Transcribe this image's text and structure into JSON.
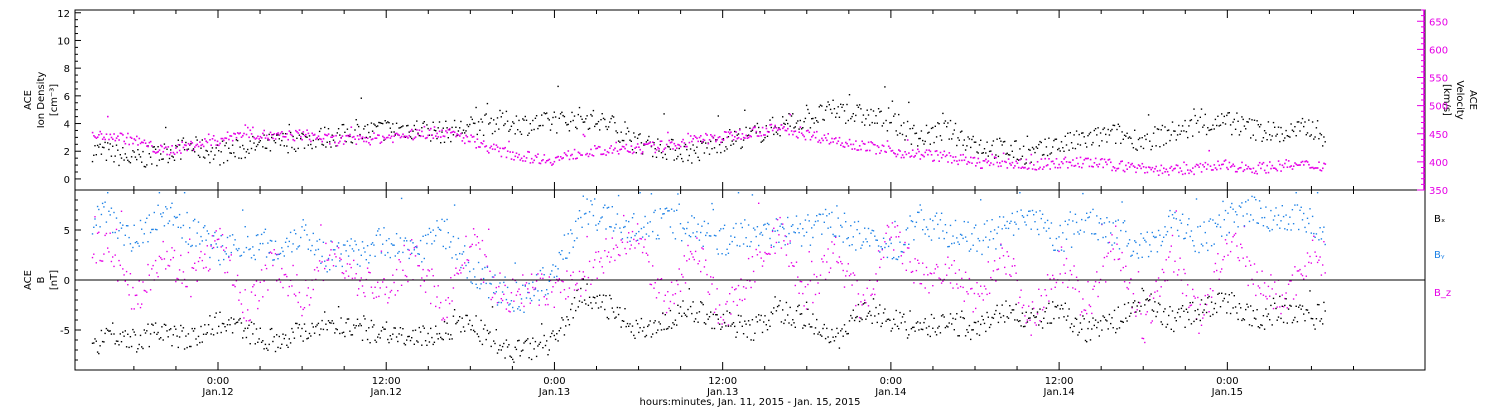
{
  "chart_data": [
    {
      "type": "scatter",
      "panel": "plasma",
      "ylabel_left": [
        "ACE",
        "Ion Density",
        "[cm⁻³]"
      ],
      "ylabel_right": [
        "ACE",
        "Velocity",
        "[km/s]"
      ],
      "ylim_left": [
        -0.8,
        12.2
      ],
      "ylim_right": [
        350,
        670
      ],
      "yticks_left": [
        "0",
        "2",
        "4",
        "6",
        "8",
        "10",
        "12"
      ],
      "yticks_right": [
        "350",
        "400",
        "450",
        "500",
        "550",
        "600",
        "650"
      ],
      "colors": {
        "density": "#000000",
        "velocity": "#e600e6"
      },
      "series": [
        {
          "name": "Ion Density",
          "axis": "left",
          "color": "#000000",
          "x_hours": [
            -9,
            -8,
            -6,
            -4,
            -2,
            0,
            2,
            4,
            6,
            8,
            10,
            12,
            14,
            16,
            18,
            20,
            22,
            24,
            26,
            28,
            30,
            32,
            34,
            36,
            38,
            40,
            42,
            44,
            46,
            48,
            50,
            52,
            54,
            56,
            58,
            60,
            62,
            64,
            66,
            68,
            70,
            72,
            74,
            76,
            78,
            79
          ],
          "values": [
            2.1,
            2.0,
            1.4,
            1.9,
            2.4,
            1.8,
            2.3,
            2.6,
            2.9,
            3.1,
            3.4,
            3.6,
            3.7,
            3.4,
            3.8,
            4.2,
            4.0,
            4.1,
            4.5,
            3.9,
            2.6,
            2.2,
            1.9,
            2.8,
            3.2,
            3.9,
            4.4,
            5.0,
            4.6,
            4.2,
            3.0,
            3.6,
            2.5,
            2.2,
            1.8,
            2.5,
            2.9,
            3.3,
            2.8,
            3.4,
            3.9,
            4.1,
            3.6,
            3.3,
            3.8,
            3.0
          ]
        },
        {
          "name": "Velocity",
          "axis": "right",
          "color": "#e600e6",
          "x_hours": [
            -9,
            -8,
            -6,
            -4,
            -2,
            0,
            2,
            4,
            6,
            8,
            10,
            12,
            14,
            16,
            18,
            20,
            22,
            24,
            26,
            28,
            30,
            32,
            34,
            36,
            38,
            40,
            42,
            44,
            46,
            48,
            50,
            52,
            54,
            56,
            58,
            60,
            62,
            64,
            66,
            68,
            70,
            72,
            74,
            76,
            78,
            79
          ],
          "values": [
            445,
            450,
            440,
            420,
            430,
            440,
            455,
            445,
            450,
            440,
            440,
            445,
            450,
            455,
            440,
            420,
            410,
            405,
            420,
            420,
            425,
            430,
            440,
            445,
            455,
            460,
            450,
            440,
            430,
            420,
            415,
            410,
            400,
            400,
            395,
            400,
            400,
            395,
            390,
            385,
            390,
            395,
            390,
            395,
            395,
            395
          ]
        }
      ]
    },
    {
      "type": "scatter",
      "panel": "magnetic field",
      "ylabel": [
        "ACE",
        "B",
        "[nT]"
      ],
      "ylim": [
        -9,
        9
      ],
      "yticks": [
        "-5",
        "0",
        "5"
      ],
      "legend": [
        "Bₓ",
        "Bᵧ",
        "B_z"
      ],
      "legend_placement": "right",
      "zero_line": true,
      "colors": {
        "bx": "#000000",
        "by": "#1e82e6",
        "bz": "#e600e6"
      },
      "series": [
        {
          "name": "Bₓ",
          "color": "#000000",
          "x_hours": [
            -9,
            -8,
            -6,
            -4,
            -2,
            0,
            2,
            4,
            6,
            8,
            10,
            12,
            14,
            16,
            18,
            20,
            22,
            24,
            26,
            28,
            30,
            32,
            34,
            36,
            38,
            40,
            42,
            44,
            46,
            48,
            50,
            52,
            54,
            56,
            58,
            60,
            62,
            64,
            66,
            68,
            70,
            72,
            74,
            76,
            78,
            79
          ],
          "values": [
            -7,
            -5,
            -6,
            -5,
            -6,
            -4,
            -5,
            -6,
            -5,
            -4,
            -5,
            -5,
            -6,
            -5,
            -4,
            -7,
            -7,
            -6,
            -1,
            -3,
            -5,
            -4,
            -3,
            -4,
            -5,
            -3,
            -4,
            -6,
            -3,
            -4,
            -5,
            -4,
            -5,
            -3,
            -4,
            -3,
            -5,
            -4,
            -2,
            -4,
            -3,
            -2,
            -4,
            -3,
            -4,
            -3
          ]
        },
        {
          "name": "Bᵧ",
          "color": "#1e82e6",
          "x_hours": [
            -9,
            -8,
            -6,
            -4,
            -2,
            0,
            2,
            4,
            6,
            8,
            10,
            12,
            14,
            16,
            18,
            20,
            22,
            24,
            26,
            28,
            30,
            32,
            34,
            36,
            38,
            40,
            42,
            44,
            46,
            48,
            50,
            52,
            54,
            56,
            58,
            60,
            62,
            64,
            66,
            68,
            70,
            72,
            74,
            76,
            78,
            79
          ],
          "values": [
            6,
            7,
            4,
            7,
            5,
            3,
            4,
            3,
            5,
            2,
            3,
            4,
            3,
            5,
            1,
            -1,
            -2,
            1,
            7,
            6,
            5,
            6,
            5,
            4,
            5,
            5,
            5,
            6,
            4,
            3,
            6,
            5,
            4,
            5,
            6,
            4,
            6,
            5,
            3,
            6,
            4,
            6,
            7,
            6,
            6,
            5
          ]
        },
        {
          "name": "B_z",
          "color": "#e600e6",
          "x_hours": [
            -9,
            -8,
            -6,
            -4,
            -2,
            0,
            2,
            4,
            6,
            8,
            10,
            12,
            14,
            16,
            18,
            20,
            22,
            24,
            26,
            28,
            30,
            32,
            34,
            36,
            38,
            40,
            42,
            44,
            46,
            48,
            50,
            52,
            54,
            56,
            58,
            60,
            62,
            64,
            66,
            68,
            70,
            72,
            74,
            76,
            78,
            79
          ],
          "values": [
            3,
            4,
            -2,
            3,
            0,
            4,
            -3,
            2,
            -2,
            3,
            0,
            -1,
            2,
            -3,
            4,
            -2,
            -1,
            -1,
            0,
            3,
            4,
            -3,
            4,
            -4,
            1,
            5,
            -2,
            3,
            -3,
            5,
            0,
            1,
            -2,
            3,
            -4,
            2,
            -3,
            4,
            -5,
            3,
            -4,
            4,
            0,
            -2,
            3,
            2
          ]
        }
      ]
    }
  ],
  "xaxis": {
    "ticks": [
      {
        "hours": 0,
        "time": "0:00",
        "date": "Jan.12"
      },
      {
        "hours": 12,
        "time": "12:00",
        "date": "Jan.12"
      },
      {
        "hours": 24,
        "time": "0:00",
        "date": "Jan.13"
      },
      {
        "hours": 36,
        "time": "12:00",
        "date": "Jan.13"
      },
      {
        "hours": 48,
        "time": "0:00",
        "date": "Jan.14"
      },
      {
        "hours": 60,
        "time": "12:00",
        "date": "Jan.14"
      },
      {
        "hours": 72,
        "time": "0:00",
        "date": "Jan.15"
      }
    ],
    "xlabel": "hours:minutes, Jan. 11, 2015 - Jan. 15, 2015",
    "range_hours": [
      -10.2,
      86.1
    ]
  }
}
